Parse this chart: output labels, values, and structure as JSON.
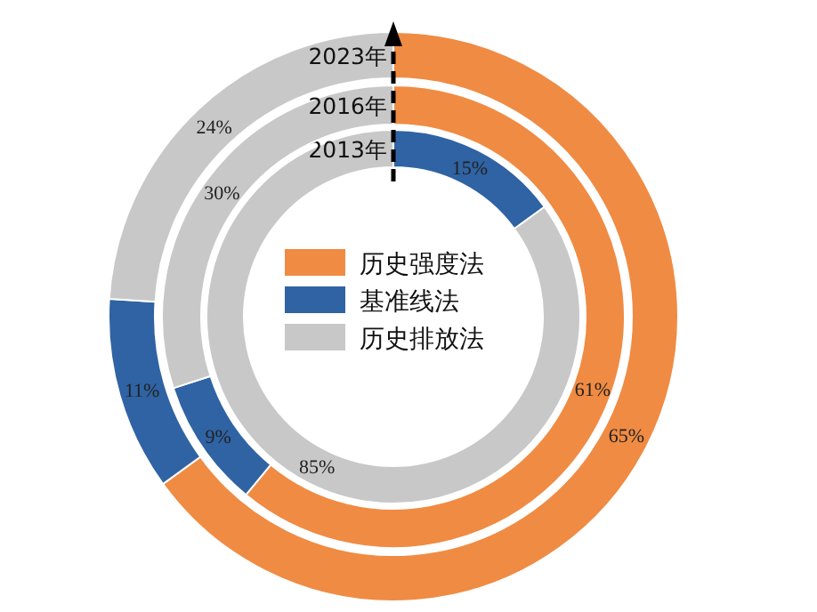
{
  "chart_data": {
    "type": "donut",
    "categories": [
      "历史强度法",
      "基准线法",
      "历史排放法"
    ],
    "colors": [
      "#f08b43",
      "#2f63a3",
      "#c8c8c8"
    ],
    "series": [
      {
        "name": "2013年",
        "values": [
          0,
          15,
          85
        ],
        "value_labels": [
          null,
          "15%",
          "85%"
        ]
      },
      {
        "name": "2016年",
        "values": [
          61,
          9,
          30
        ],
        "value_labels": [
          "61%",
          "9%",
          "30%"
        ]
      },
      {
        "name": "2023年",
        "values": [
          65,
          11,
          24
        ],
        "value_labels": [
          "65%",
          "11%",
          "24%"
        ]
      }
    ],
    "legend": "center"
  }
}
